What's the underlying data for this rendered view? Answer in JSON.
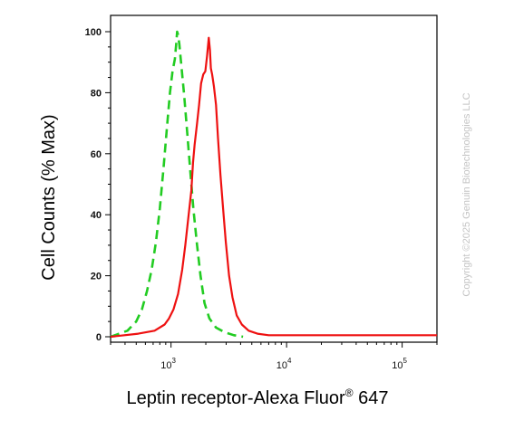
{
  "chart_data": {
    "type": "line",
    "title": "",
    "xlabel": "Leptin receptor-Alexa Fluor",
    "xlabel_mark": "®",
    "xlabel_suffix": " 647",
    "ylabel": "Cell Counts (% Max)",
    "x_scale": "log",
    "xlim": [
      300,
      200000
    ],
    "ylim": [
      0,
      100
    ],
    "y_ticks": [
      {
        "value": 0,
        "label": "0"
      },
      {
        "value": 20,
        "label": "20"
      },
      {
        "value": 40,
        "label": "40"
      },
      {
        "value": 60,
        "label": "60"
      },
      {
        "value": 80,
        "label": "80"
      },
      {
        "value": 100,
        "label": "100"
      }
    ],
    "x_ticks": [
      {
        "value": 1000,
        "base": "10",
        "exp": "3"
      },
      {
        "value": 10000,
        "base": "10",
        "exp": "4"
      },
      {
        "value": 100000,
        "base": "10",
        "exp": "5"
      }
    ],
    "grid": false,
    "legend": "none",
    "series": [
      {
        "color": "#22cc22",
        "style": "dashed",
        "points": [
          [
            300,
            0
          ],
          [
            420,
            2
          ],
          [
            500,
            5
          ],
          [
            560,
            9
          ],
          [
            620,
            15
          ],
          [
            680,
            22
          ],
          [
            740,
            31
          ],
          [
            800,
            42
          ],
          [
            860,
            55
          ],
          [
            920,
            68
          ],
          [
            980,
            80
          ],
          [
            1030,
            87
          ],
          [
            1080,
            91
          ],
          [
            1110,
            96
          ],
          [
            1130,
            100
          ],
          [
            1150,
            99
          ],
          [
            1180,
            96
          ],
          [
            1220,
            90
          ],
          [
            1300,
            79
          ],
          [
            1380,
            67
          ],
          [
            1470,
            54
          ],
          [
            1560,
            42
          ],
          [
            1680,
            30
          ],
          [
            1800,
            20
          ],
          [
            1950,
            11
          ],
          [
            2150,
            6
          ],
          [
            2450,
            3
          ],
          [
            2900,
            1.5
          ],
          [
            3500,
            0.5
          ],
          [
            4200,
            0
          ]
        ]
      },
      {
        "color": "#ee1111",
        "style": "solid",
        "points": [
          [
            300,
            0
          ],
          [
            520,
            1
          ],
          [
            720,
            2
          ],
          [
            880,
            4
          ],
          [
            960,
            6
          ],
          [
            1050,
            9
          ],
          [
            1150,
            14
          ],
          [
            1250,
            22
          ],
          [
            1330,
            30
          ],
          [
            1420,
            40
          ],
          [
            1500,
            48
          ],
          [
            1550,
            57
          ],
          [
            1600,
            63
          ],
          [
            1680,
            70
          ],
          [
            1750,
            76
          ],
          [
            1820,
            83
          ],
          [
            1900,
            86
          ],
          [
            1980,
            87
          ],
          [
            2050,
            92
          ],
          [
            2120,
            98
          ],
          [
            2170,
            94
          ],
          [
            2210,
            88
          ],
          [
            2270,
            86
          ],
          [
            2350,
            82
          ],
          [
            2450,
            76
          ],
          [
            2550,
            65
          ],
          [
            2680,
            53
          ],
          [
            2820,
            42
          ],
          [
            2980,
            31
          ],
          [
            3180,
            20
          ],
          [
            3400,
            13
          ],
          [
            3700,
            7
          ],
          [
            4100,
            4
          ],
          [
            4700,
            2
          ],
          [
            5600,
            1
          ],
          [
            7000,
            0.5
          ],
          [
            10000,
            0.5
          ],
          [
            20000,
            0.5
          ],
          [
            50000,
            0.5
          ],
          [
            200000,
            0.5
          ]
        ]
      }
    ]
  },
  "watermark": "Copyright ©2025 Genuin Biotechnologies LLC"
}
